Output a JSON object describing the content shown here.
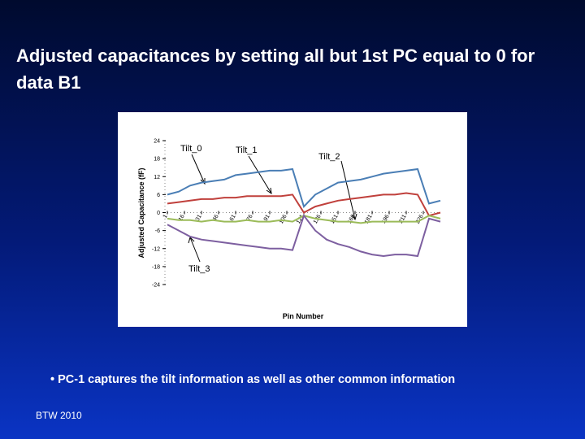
{
  "slide": {
    "title": "Adjusted capacitances by setting all but 1st PC equal to 0 for data B1",
    "bullet": "PC-1 captures the tilt information as well as other common information",
    "footer": "BTW 2010"
  },
  "chart_data": {
    "type": "line",
    "x": [
      1,
      11,
      21,
      31,
      41,
      51,
      61,
      71,
      81,
      91,
      101,
      111,
      121,
      131,
      141,
      151,
      161,
      171,
      181,
      191,
      201,
      211,
      221,
      231,
      241
    ],
    "series": [
      {
        "name": "Tilt_0",
        "color": "#4a7eb5",
        "values": [
          6,
          7,
          9,
          10,
          10.5,
          11,
          12.5,
          13,
          13.5,
          14,
          14,
          14.5,
          2,
          6,
          8,
          10,
          10.5,
          11,
          12,
          13,
          13.5,
          14,
          14.5,
          3,
          4
        ]
      },
      {
        "name": "Tilt_1",
        "color": "#c0403c",
        "values": [
          3,
          3.5,
          4,
          4.5,
          4.5,
          5,
          5,
          5.5,
          5.5,
          5.5,
          5.5,
          6,
          0,
          2,
          3,
          4,
          4.5,
          5,
          5.5,
          6,
          6,
          6.5,
          6,
          -1,
          0
        ]
      },
      {
        "name": "Tilt_2",
        "color": "#9bbb59",
        "values": [
          -2,
          -2.5,
          -2.5,
          -3,
          -2.5,
          -3,
          -3,
          -2.5,
          -3,
          -3,
          -2.5,
          -3,
          -1,
          -2,
          -2.5,
          -3,
          -3,
          -3.5,
          -3,
          -3,
          -3,
          -3,
          -3,
          -1,
          -2
        ]
      },
      {
        "name": "Tilt_3",
        "color": "#7d5fa0",
        "values": [
          -4,
          -6,
          -8,
          -9,
          -9.5,
          -10,
          -10.5,
          -11,
          -11.5,
          -12,
          -12,
          -12.5,
          -1,
          -6,
          -9,
          -10.5,
          -11.5,
          -13,
          -14,
          -14.5,
          -14,
          -14,
          -14.5,
          -2,
          -3
        ]
      }
    ],
    "xlabel": "Pin Number",
    "ylabel": "Adjusted Capacitance (fF)",
    "xlim": [
      1,
      241
    ],
    "xticks": [
      1,
      16,
      31,
      46,
      61,
      76,
      91,
      106,
      121,
      136,
      151,
      166,
      181,
      196,
      211,
      226
    ],
    "ylim": [
      -24,
      24
    ],
    "yticks": [
      -24,
      -18,
      -12,
      -6,
      0,
      6,
      12,
      18,
      24
    ]
  }
}
